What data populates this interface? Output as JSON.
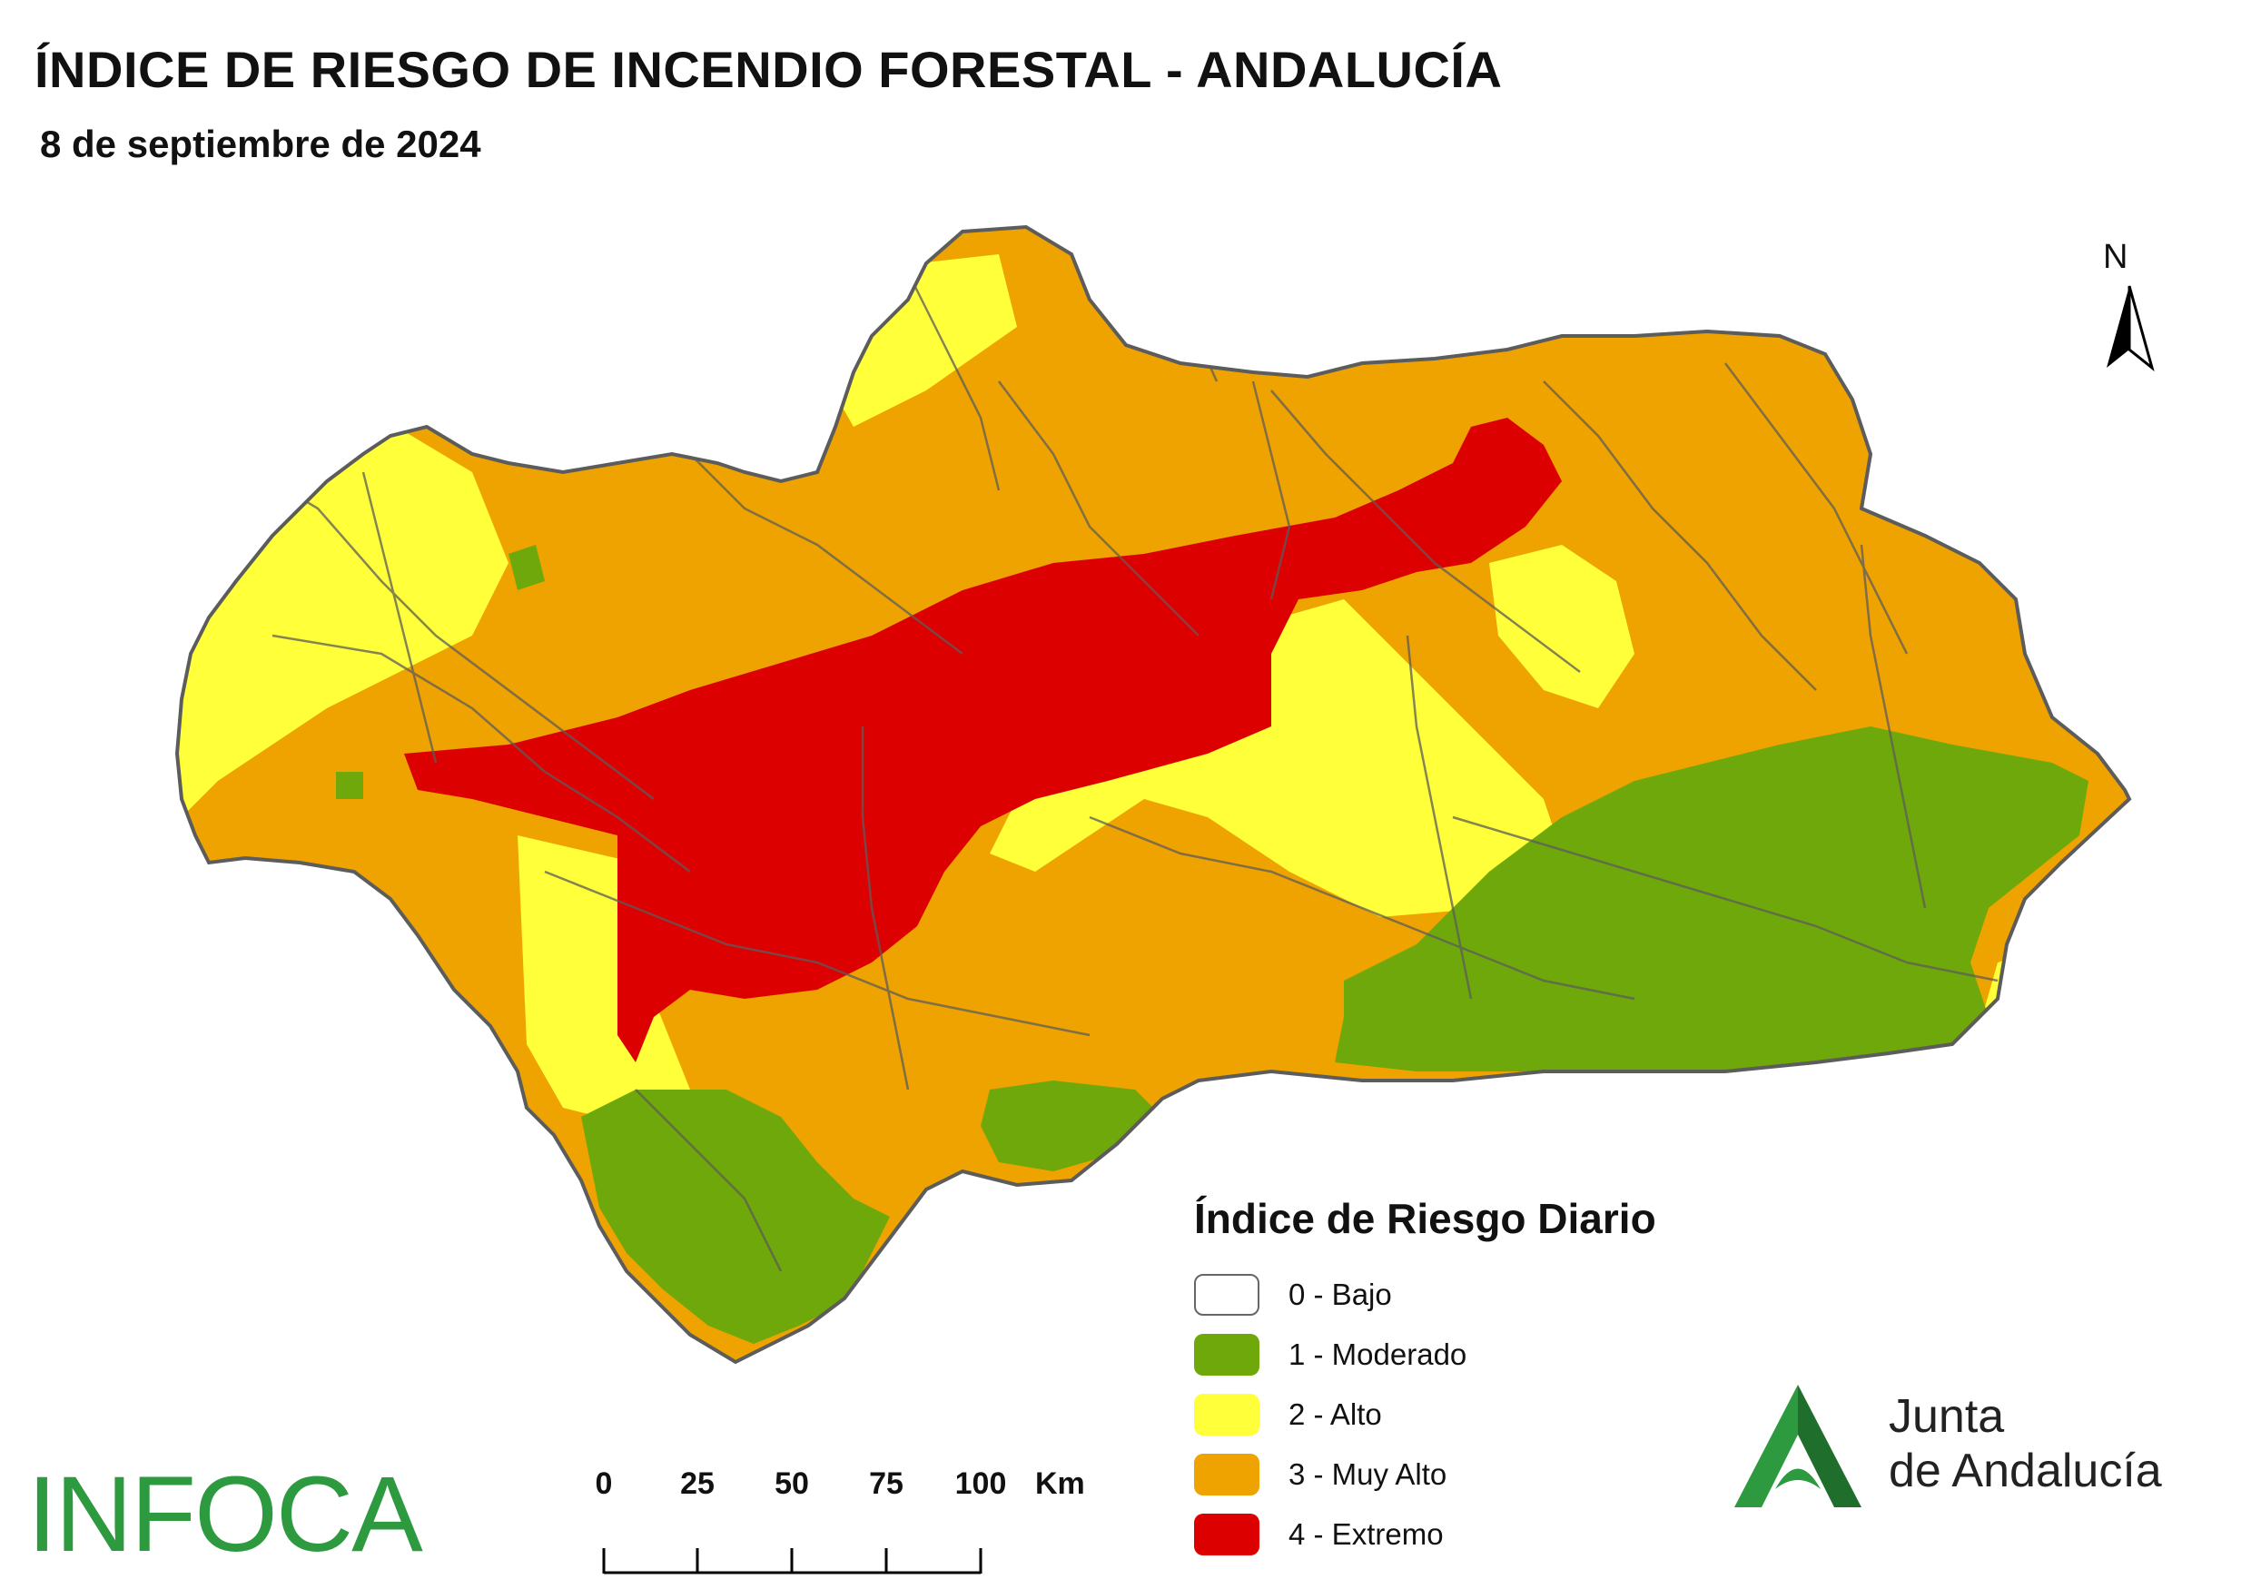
{
  "title": "ÍNDICE DE RIESGO DE INCENDIO FORESTAL - ANDALUCÍA",
  "subtitle": "8 de septiembre de 2024",
  "north_arrow": {
    "label": "N"
  },
  "legend": {
    "title": "Índice de Riesgo Diario",
    "items": [
      {
        "label": "0 - Bajo",
        "color": "#ffffff"
      },
      {
        "label": "1 - Moderado",
        "color": "#6fa80a"
      },
      {
        "label": "2 - Alto",
        "color": "#ffff3a"
      },
      {
        "label": "3 - Muy Alto",
        "color": "#eea300"
      },
      {
        "label": "4 - Extremo",
        "color": "#dd0000"
      }
    ]
  },
  "scale_bar": {
    "ticks": [
      "0",
      "25",
      "50",
      "75",
      "100"
    ],
    "unit": "Km"
  },
  "logos": {
    "infoca": "INFOCA",
    "junta_line1": "Junta",
    "junta_line2": "de Andalucía"
  },
  "map_colors": {
    "outline": "#5c5c5c",
    "moderado": "#6fa80a",
    "alto": "#ffff3a",
    "muy_alto": "#eea300",
    "extremo": "#dd0000"
  }
}
